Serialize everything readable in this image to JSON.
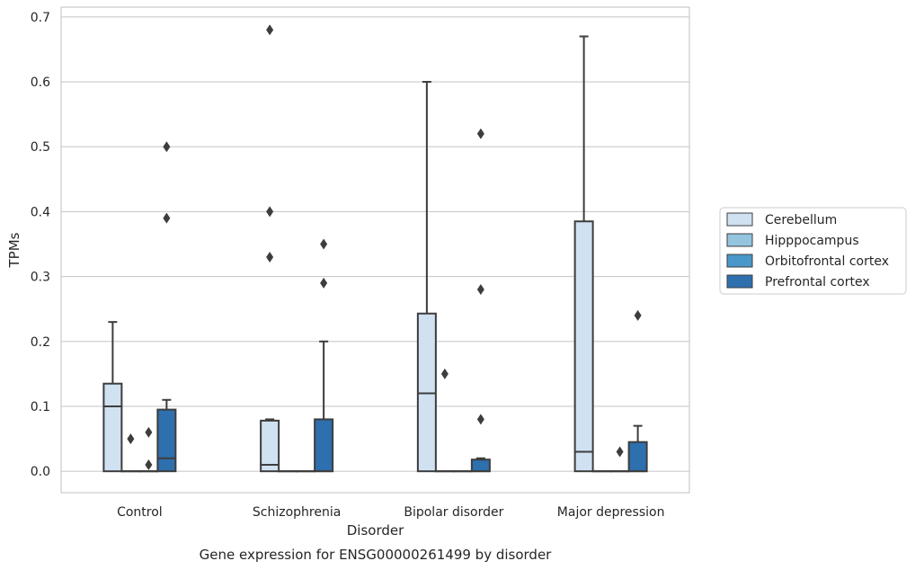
{
  "chart_data": {
    "type": "box",
    "xlabel": "Disorder",
    "ylabel": "TPMs",
    "caption": "Gene expression for ENSG00000261499 by disorder",
    "ylim": [
      -0.033,
      0.715
    ],
    "yticks": [
      "0.0",
      "0.1",
      "0.2",
      "0.3",
      "0.4",
      "0.5",
      "0.6",
      "0.7"
    ],
    "ytick_values": [
      0,
      0.1,
      0.2,
      0.3,
      0.4,
      0.5,
      0.6,
      0.7
    ],
    "grid": true,
    "legend_position": "right",
    "categories": [
      "Control",
      "Schizophrenia",
      "Bipolar disorder",
      "Major depression"
    ],
    "series": [
      {
        "name": "Cerebellum",
        "color": "#d0e1f2",
        "boxes": [
          {
            "q1": 0,
            "median": 0.1,
            "q3": 0.135,
            "whisker_low": 0,
            "whisker_high": 0.23,
            "outliers": []
          },
          {
            "q1": 0,
            "median": 0.01,
            "q3": 0.078,
            "whisker_low": 0,
            "whisker_high": 0.08,
            "outliers": [
              0.33,
              0.4,
              0.68
            ]
          },
          {
            "q1": 0,
            "median": 0.12,
            "q3": 0.243,
            "whisker_low": 0,
            "whisker_high": 0.6,
            "outliers": []
          },
          {
            "q1": 0,
            "median": 0.03,
            "q3": 0.385,
            "whisker_low": 0,
            "whisker_high": 0.67,
            "outliers": []
          }
        ]
      },
      {
        "name": "Hipppocampus",
        "color": "#94c4df",
        "boxes": [
          {
            "q1": 0,
            "median": 0,
            "q3": 0,
            "whisker_low": 0,
            "whisker_high": 0,
            "outliers": [
              0.05
            ]
          },
          {
            "q1": 0,
            "median": 0,
            "q3": 0,
            "whisker_low": 0,
            "whisker_high": 0,
            "outliers": []
          },
          {
            "q1": 0,
            "median": 0,
            "q3": 0,
            "whisker_low": 0,
            "whisker_high": 0,
            "outliers": [
              0.15
            ]
          },
          {
            "q1": 0,
            "median": 0,
            "q3": 0,
            "whisker_low": 0,
            "whisker_high": 0,
            "outliers": []
          }
        ]
      },
      {
        "name": "Orbitofrontal cortex",
        "color": "#4a98c9",
        "boxes": [
          {
            "q1": 0,
            "median": 0,
            "q3": 0,
            "whisker_low": 0,
            "whisker_high": 0,
            "outliers": [
              0.01,
              0.06
            ]
          },
          {
            "q1": 0,
            "median": 0,
            "q3": 0,
            "whisker_low": 0,
            "whisker_high": 0,
            "outliers": []
          },
          {
            "q1": 0,
            "median": 0,
            "q3": 0,
            "whisker_low": 0,
            "whisker_high": 0,
            "outliers": []
          },
          {
            "q1": 0,
            "median": 0,
            "q3": 0,
            "whisker_low": 0,
            "whisker_high": 0,
            "outliers": [
              0.03
            ]
          }
        ]
      },
      {
        "name": "Prefrontal cortex",
        "color": "#2e6fae",
        "boxes": [
          {
            "q1": 0,
            "median": 0.02,
            "q3": 0.095,
            "whisker_low": 0,
            "whisker_high": 0.11,
            "outliers": [
              0.39,
              0.5
            ]
          },
          {
            "q1": 0,
            "median": 0,
            "q3": 0.08,
            "whisker_low": 0,
            "whisker_high": 0.2,
            "outliers": [
              0.29,
              0.35
            ]
          },
          {
            "q1": 0,
            "median": 0,
            "q3": 0.018,
            "whisker_low": 0,
            "whisker_high": 0.02,
            "outliers": [
              0.08,
              0.28,
              0.52
            ]
          },
          {
            "q1": 0,
            "median": 0,
            "q3": 0.045,
            "whisker_low": 0,
            "whisker_high": 0.07,
            "outliers": [
              0.24
            ]
          }
        ]
      }
    ]
  }
}
